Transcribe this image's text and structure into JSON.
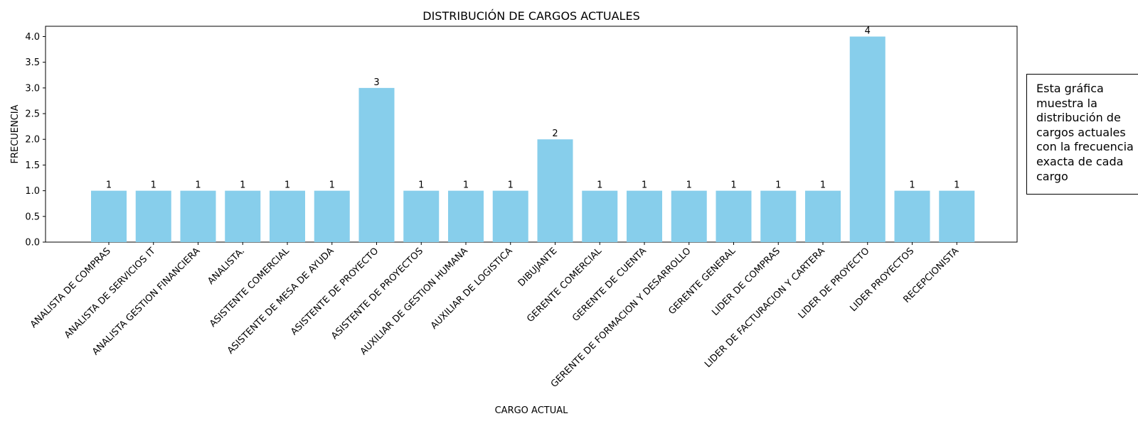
{
  "chart_data": {
    "type": "bar",
    "title": "DISTRIBUCIÓN DE CARGOS ACTUALES",
    "xlabel": "CARGO ACTUAL",
    "ylabel": "FRECUENCIA",
    "ylim": [
      0,
      4.2
    ],
    "yticks": [
      "0.0",
      "0.5",
      "1.0",
      "1.5",
      "2.0",
      "2.5",
      "3.0",
      "3.5",
      "4.0"
    ],
    "grid": false,
    "bar_color": "#87CEEB",
    "categories": [
      "ANALISTA DE COMPRAS",
      "ANALISTA DE SERVICIOS IT",
      "ANALISTA GESTION FINANCIERA",
      "ANALISTA.",
      "ASISTENTE COMERCIAL",
      "ASISTENTE DE MESA DE AYUDA",
      "ASISTENTE DE PROYECTO",
      "ASISTENTE DE PROYECTOS",
      "AUXILIAR DE GESTION HUMANA",
      "AUXILIAR DE LOGISTICA",
      "DIBUJANTE",
      "GERENTE COMERCIAL",
      "GERENTE DE CUENTA",
      "GERENTE DE FORMACION Y DESARROLLO",
      "GERENTE GENERAL",
      "LIDER DE COMPRAS",
      "LIDER DE FACTURACION Y CARTERA",
      "LIDER DE PROYECTO",
      "LIDER PROYECTOS",
      "RECEPCIONISTA"
    ],
    "values": [
      1,
      1,
      1,
      1,
      1,
      1,
      3,
      1,
      1,
      1,
      2,
      1,
      1,
      1,
      1,
      1,
      1,
      4,
      1,
      1
    ],
    "data_labels": [
      "1",
      "1",
      "1",
      "1",
      "1",
      "1",
      "3",
      "1",
      "1",
      "1",
      "2",
      "1",
      "1",
      "1",
      "1",
      "1",
      "1",
      "4",
      "1",
      "1"
    ]
  },
  "note": {
    "text": "Esta gráfica muestra la distribución de cargos actuales con la frecuencia exacta de cada cargo"
  }
}
